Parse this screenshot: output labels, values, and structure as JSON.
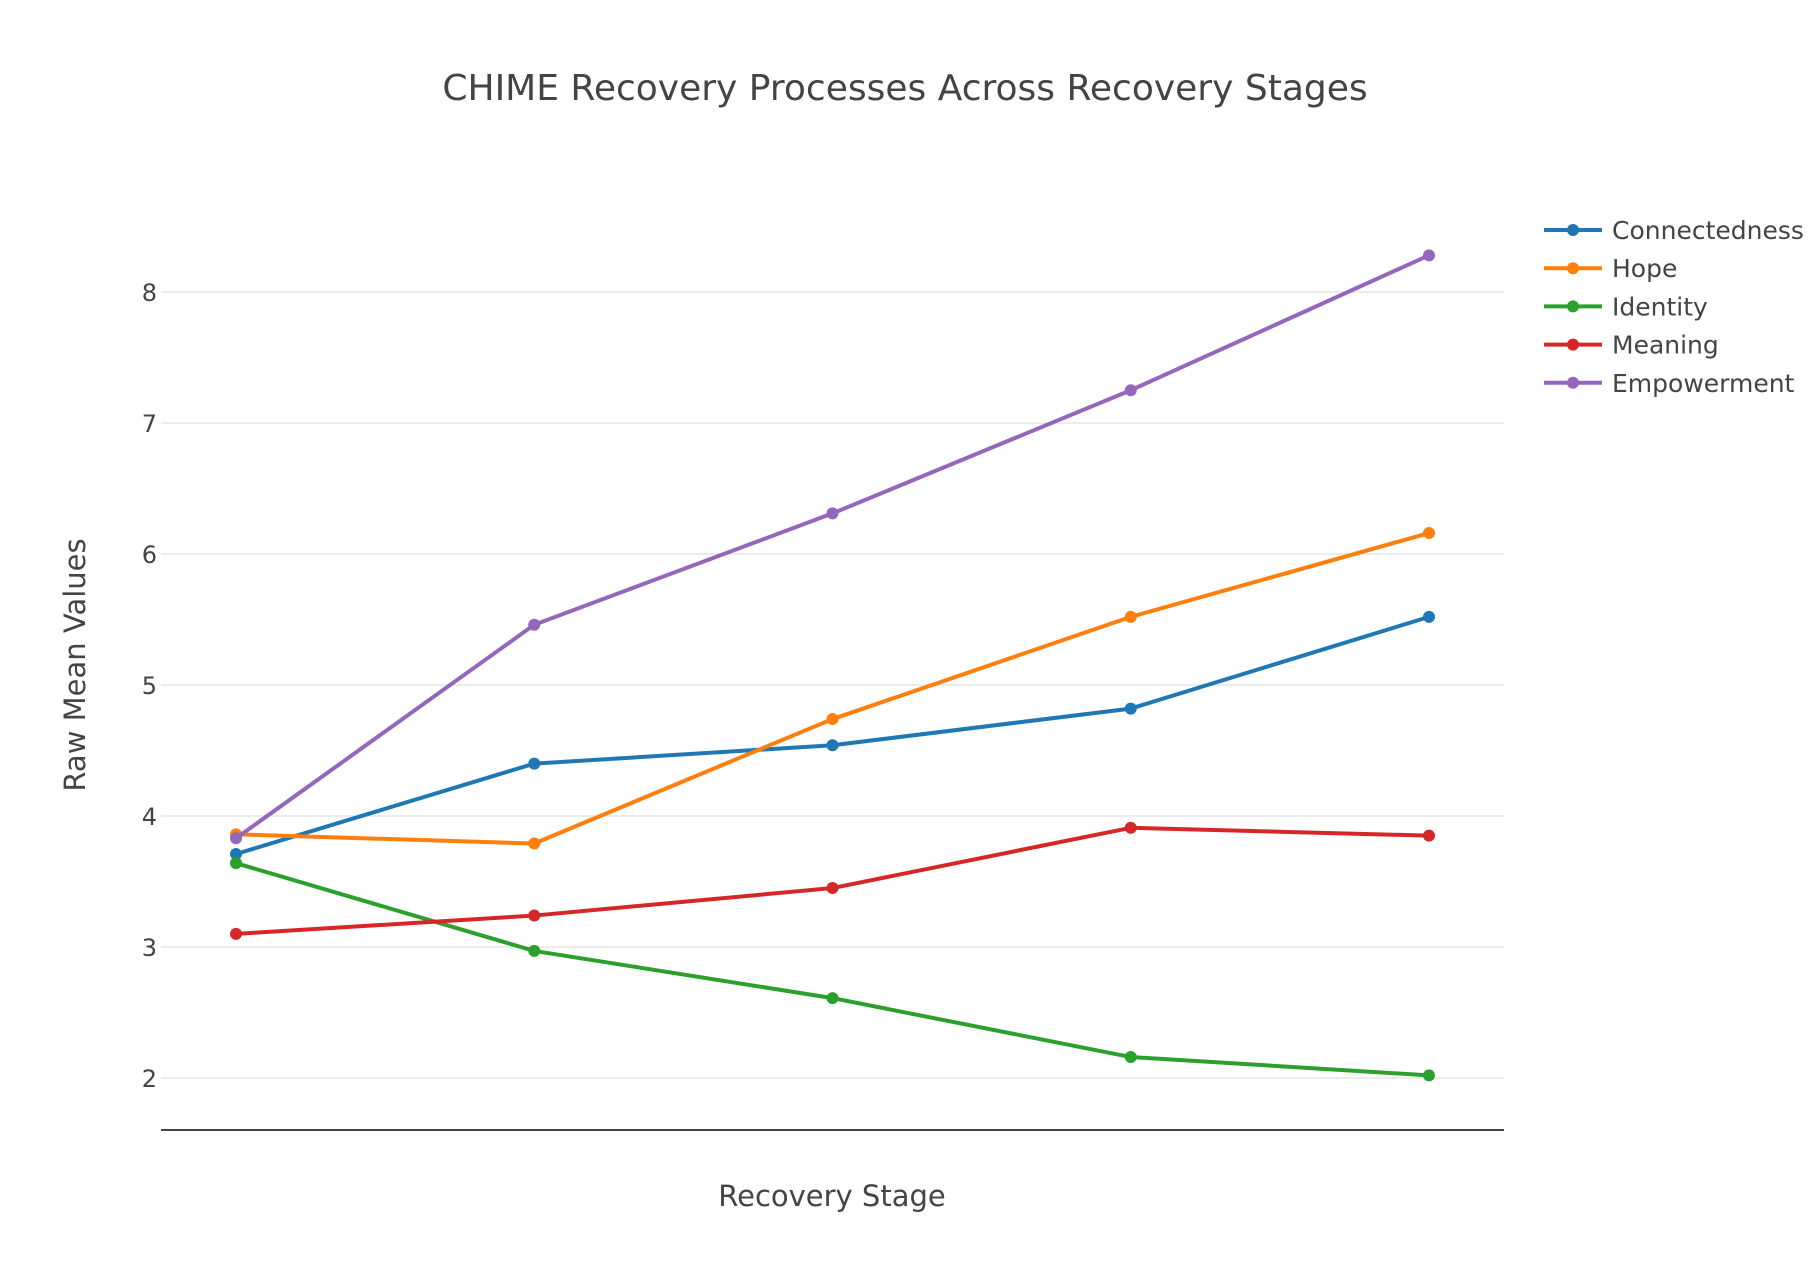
{
  "chart_data": {
    "type": "line",
    "title": "CHIME Recovery Processes Across Recovery Stages",
    "xlabel": "Recovery Stage",
    "ylabel": "Raw Mean Values",
    "x": [
      1,
      2,
      3,
      4,
      5
    ],
    "x_tick_labels_shown": false,
    "yticks": [
      2,
      3,
      4,
      5,
      6,
      7,
      8
    ],
    "ylim": [
      1.6,
      8.9
    ],
    "grid": "horizontal",
    "legend_position": "top-right",
    "series": [
      {
        "name": "Connectedness",
        "color": "#1f77b4",
        "values": [
          3.71,
          4.4,
          4.54,
          4.82,
          5.52
        ]
      },
      {
        "name": "Hope",
        "color": "#ff7f0e",
        "values": [
          3.86,
          3.79,
          4.74,
          5.52,
          6.16
        ]
      },
      {
        "name": "Identity",
        "color": "#2ca02c",
        "values": [
          3.64,
          2.97,
          2.61,
          2.16,
          2.02
        ]
      },
      {
        "name": "Meaning",
        "color": "#d62728",
        "values": [
          3.1,
          3.24,
          3.45,
          3.91,
          3.85
        ]
      },
      {
        "name": "Empowerment",
        "color": "#9467bd",
        "values": [
          3.83,
          5.46,
          6.31,
          7.25,
          8.28
        ]
      }
    ]
  }
}
